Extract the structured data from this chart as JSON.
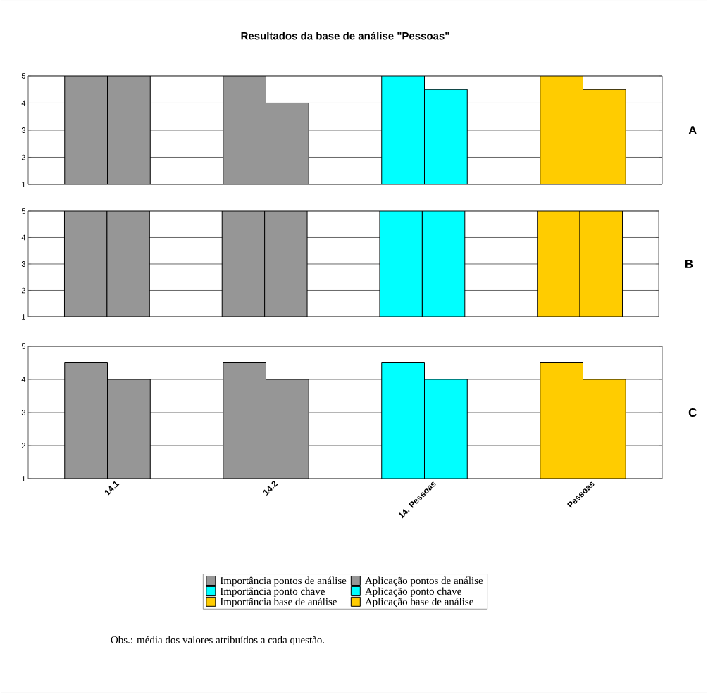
{
  "chart_data": [
    {
      "type": "bar",
      "title": "Resultados da base de análise \"Pessoas\"",
      "categories": [
        null,
        null,
        null,
        null
      ],
      "ylim": [
        1,
        5
      ],
      "yticks": [
        1,
        2,
        3,
        4,
        5
      ],
      "grid": "y",
      "tick_labels": "y",
      "annotations": [
        "A"
      ],
      "series": [
        {
          "color": "#969696",
          "values": [
            5,
            5,
            null,
            null
          ]
        },
        {
          "color": "#969696",
          "values": [
            5,
            4,
            null,
            null
          ]
        },
        {
          "color": "#00ffff",
          "values": [
            null,
            null,
            5,
            null
          ]
        },
        {
          "color": "#00ffff",
          "values": [
            null,
            null,
            4.5,
            null
          ]
        },
        {
          "color": "#ffcc00",
          "values": [
            null,
            null,
            null,
            5
          ]
        },
        {
          "color": "#ffcc00",
          "values": [
            null,
            null,
            null,
            4.5
          ]
        }
      ]
    },
    {
      "type": "bar",
      "categories": [
        null,
        null,
        null,
        null
      ],
      "ylim": [
        1,
        5
      ],
      "yticks": [
        1,
        2,
        3,
        4,
        5
      ],
      "grid": "y",
      "tick_labels": "y",
      "annotations": [
        "B"
      ],
      "series": [
        {
          "color": "#969696",
          "values": [
            5,
            5,
            null,
            null
          ]
        },
        {
          "color": "#969696",
          "values": [
            5,
            5,
            null,
            null
          ]
        },
        {
          "color": "#00ffff",
          "values": [
            null,
            null,
            5,
            null
          ]
        },
        {
          "color": "#00ffff",
          "values": [
            null,
            null,
            5,
            null
          ]
        },
        {
          "color": "#ffcc00",
          "values": [
            null,
            null,
            null,
            5
          ]
        },
        {
          "color": "#ffcc00",
          "values": [
            null,
            null,
            null,
            5
          ]
        }
      ]
    },
    {
      "type": "bar",
      "categories": [
        "14.1",
        "14.2",
        "14. Pessoas",
        "Pessoas"
      ],
      "ylim": [
        1,
        5
      ],
      "yticks": [
        1,
        2,
        3,
        4,
        5
      ],
      "grid": "y",
      "legend": "bottom",
      "annotations": [
        "C",
        "Obs.: média dos valores atribuídos a cada questão."
      ],
      "series": [
        {
          "name": "Importância pontos de análise",
          "color": "#969696",
          "values": [
            4.5,
            4.5,
            null,
            null
          ]
        },
        {
          "name": "Aplicação pontos de análise",
          "color": "#969696",
          "values": [
            4,
            4,
            null,
            null
          ]
        },
        {
          "name": "Importância ponto chave",
          "color": "#00ffff",
          "values": [
            null,
            null,
            4.5,
            null
          ]
        },
        {
          "name": "Aplicação ponto chave",
          "color": "#00ffff",
          "values": [
            null,
            null,
            4,
            null
          ]
        },
        {
          "name": "Importância base de análise",
          "color": "#ffcc00",
          "values": [
            null,
            null,
            null,
            4.5
          ]
        },
        {
          "name": "Aplicação base de análise",
          "color": "#ffcc00",
          "values": [
            null,
            null,
            null,
            4
          ]
        }
      ]
    }
  ]
}
